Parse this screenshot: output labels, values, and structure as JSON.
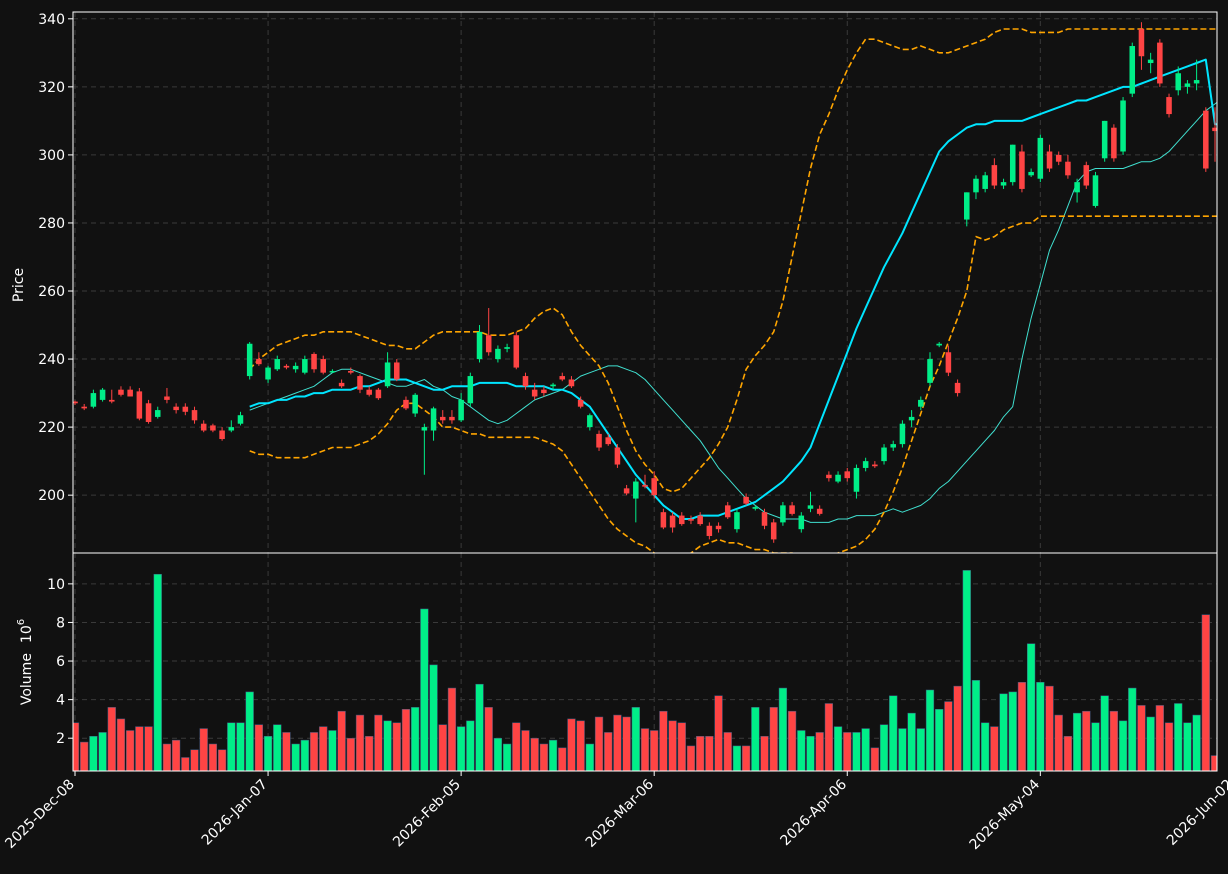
{
  "chart_data": {
    "type": "candlestick",
    "colors": {
      "background": "#111111",
      "up": "#00ee88",
      "down": "#ff4444",
      "ma_fast": "#40e0d0",
      "ma_slow": "#00e5ff",
      "bands": "#ffa500",
      "frame": "#ffffff"
    },
    "price_panel": {
      "ylabel": "Price",
      "ylim": [
        183,
        342
      ],
      "yticks": [
        200,
        220,
        240,
        260,
        280,
        300,
        320,
        340
      ]
    },
    "volume_panel": {
      "ylabel": "Volume",
      "exponent_label": "10",
      "exponent_power": "6",
      "ylim": [
        0.3,
        11.6
      ],
      "yticks": [
        2,
        4,
        6,
        8,
        10
      ]
    },
    "x_ticks": [
      {
        "index": 0,
        "label": "2025-Dec-08"
      },
      {
        "index": 21,
        "label": "2026-Jan-07"
      },
      {
        "index": 42,
        "label": "2026-Feb-05"
      },
      {
        "index": 63,
        "label": "2026-Mar-06"
      },
      {
        "index": 84,
        "label": "2026-Apr-06"
      },
      {
        "index": 105,
        "label": "2026-May-04"
      },
      {
        "index": 126,
        "label": "2026-Jun-02"
      }
    ],
    "candles": [
      [
        227.5,
        227.8,
        226.5,
        227.0,
        2.8
      ],
      [
        226.0,
        226.8,
        225.0,
        225.5,
        1.8
      ],
      [
        226.0,
        231.0,
        225.5,
        230.0,
        2.1
      ],
      [
        228.0,
        231.5,
        227.5,
        231.0,
        2.3
      ],
      [
        228.0,
        231.0,
        227.0,
        227.5,
        3.6
      ],
      [
        231.0,
        232.0,
        229.0,
        229.5,
        3.0
      ],
      [
        231.0,
        232.0,
        229.0,
        229.0,
        2.4
      ],
      [
        230.5,
        231.5,
        222.0,
        222.5,
        2.6
      ],
      [
        227.0,
        228.0,
        221.0,
        221.5,
        2.6
      ],
      [
        223.0,
        226.0,
        222.5,
        225.0,
        10.5
      ],
      [
        229.0,
        231.5,
        227.0,
        228.0,
        1.7
      ],
      [
        226.0,
        227.0,
        224.0,
        225.0,
        1.9
      ],
      [
        226.0,
        227.0,
        223.5,
        224.5,
        1.0
      ],
      [
        225.0,
        226.0,
        221.0,
        222.0,
        1.4
      ],
      [
        221.0,
        222.0,
        218.5,
        219.0,
        2.5
      ],
      [
        220.5,
        221.0,
        218.5,
        219.0,
        1.7
      ],
      [
        219.0,
        220.0,
        216.0,
        216.5,
        1.4
      ],
      [
        219.0,
        222.0,
        218.5,
        220.0,
        2.8
      ],
      [
        221.0,
        224.5,
        220.5,
        223.5,
        2.8
      ],
      [
        235.0,
        245.0,
        234.0,
        244.5,
        4.4
      ],
      [
        240.0,
        242.0,
        238.0,
        238.5,
        2.7
      ],
      [
        234.0,
        238.0,
        233.0,
        237.5,
        2.1
      ],
      [
        237.0,
        241.0,
        236.5,
        240.0,
        2.7
      ],
      [
        238.0,
        238.5,
        237.0,
        237.5,
        2.3
      ],
      [
        237.0,
        239.0,
        236.0,
        238.0,
        1.7
      ],
      [
        236.0,
        241.0,
        235.5,
        240.0,
        1.9
      ],
      [
        241.5,
        242.0,
        236.0,
        237.0,
        2.3
      ],
      [
        240.0,
        241.0,
        235.5,
        236.0,
        2.6
      ],
      [
        236.5,
        237.0,
        236.0,
        236.5,
        2.4
      ],
      [
        233.0,
        234.0,
        231.5,
        232.0,
        3.4
      ],
      [
        236.5,
        237.5,
        235.5,
        236.0,
        2.0
      ],
      [
        235.0,
        235.5,
        230.0,
        231.0,
        3.2
      ],
      [
        231.0,
        232.0,
        229.0,
        229.5,
        2.1
      ],
      [
        231.0,
        231.5,
        228.0,
        228.5,
        3.2
      ],
      [
        232.0,
        242.0,
        231.5,
        239.0,
        2.9
      ],
      [
        239.0,
        240.0,
        233.5,
        234.0,
        2.8
      ],
      [
        228.0,
        229.0,
        225.0,
        225.5,
        3.5
      ],
      [
        224.0,
        230.0,
        223.0,
        229.5,
        3.6
      ],
      [
        219.0,
        221.0,
        206.0,
        220.0,
        8.7
      ],
      [
        219.0,
        226.0,
        216.0,
        225.5,
        5.8
      ],
      [
        223.0,
        225.0,
        221.0,
        222.0,
        2.7
      ],
      [
        223.0,
        225.0,
        221.0,
        222.0,
        4.6
      ],
      [
        222.0,
        230.0,
        221.5,
        228.0,
        2.6
      ],
      [
        227.0,
        236.0,
        226.0,
        235.0,
        2.9
      ],
      [
        240.0,
        250.0,
        239.0,
        248.0,
        4.8
      ],
      [
        247.0,
        255.0,
        241.0,
        242.0,
        3.6
      ],
      [
        240.0,
        244.0,
        239.0,
        243.0,
        2.0
      ],
      [
        243.0,
        244.5,
        242.0,
        243.5,
        1.7
      ],
      [
        247.0,
        248.0,
        237.0,
        237.5,
        2.8
      ],
      [
        235.0,
        236.0,
        231.0,
        232.0,
        2.4
      ],
      [
        231.0,
        233.0,
        228.0,
        229.0,
        2.0
      ],
      [
        231.0,
        232.0,
        229.0,
        230.0,
        1.7
      ],
      [
        232.0,
        233.0,
        231.0,
        232.5,
        1.9
      ],
      [
        235.0,
        236.0,
        233.5,
        234.0,
        1.5
      ],
      [
        234.0,
        235.0,
        231.5,
        232.0,
        3.0
      ],
      [
        228.0,
        229.0,
        225.5,
        226.0,
        2.9
      ],
      [
        220.0,
        224.0,
        219.0,
        223.5,
        1.7
      ],
      [
        218.0,
        219.0,
        213.0,
        214.0,
        3.1
      ],
      [
        217.0,
        218.0,
        214.5,
        215.0,
        2.3
      ],
      [
        214.0,
        215.0,
        208.0,
        209.0,
        3.2
      ],
      [
        202.0,
        203.0,
        200.0,
        200.5,
        3.1
      ],
      [
        199.0,
        205.0,
        192.0,
        204.0,
        3.6
      ],
      [
        203.0,
        206.0,
        202.0,
        202.5,
        2.5
      ],
      [
        205.0,
        207.0,
        199.0,
        200.0,
        2.4
      ],
      [
        195.0,
        196.0,
        190.0,
        190.5,
        3.4
      ],
      [
        194.0,
        195.0,
        189.0,
        190.5,
        2.9
      ],
      [
        194.0,
        195.0,
        191.0,
        191.5,
        2.8
      ],
      [
        193.0,
        194.0,
        191.5,
        192.5,
        1.6
      ],
      [
        194.0,
        195.0,
        191.0,
        191.5,
        2.1
      ],
      [
        191.0,
        192.0,
        187.0,
        188.0,
        2.1
      ],
      [
        191.0,
        192.0,
        189.0,
        190.0,
        4.2
      ],
      [
        197.0,
        198.0,
        193.0,
        193.5,
        2.3
      ],
      [
        190.0,
        196.0,
        189.0,
        195.0,
        1.6
      ],
      [
        199.5,
        200.5,
        197.0,
        197.5,
        1.6
      ],
      [
        196.0,
        197.0,
        195.5,
        196.5,
        3.6
      ],
      [
        195.0,
        196.0,
        190.0,
        191.0,
        2.1
      ],
      [
        192.0,
        193.0,
        186.0,
        187.0,
        3.6
      ],
      [
        192.0,
        198.0,
        191.0,
        197.0,
        4.6
      ],
      [
        197.0,
        198.0,
        194.0,
        194.5,
        3.4
      ],
      [
        190.0,
        195.0,
        189.0,
        194.0,
        2.4
      ],
      [
        196.0,
        201.0,
        195.0,
        197.0,
        2.1
      ],
      [
        196.0,
        197.0,
        194.0,
        194.5,
        2.3
      ],
      [
        206.0,
        207.0,
        204.0,
        205.0,
        3.8
      ],
      [
        204.0,
        207.0,
        203.5,
        206.0,
        2.6
      ],
      [
        207.0,
        208.0,
        204.0,
        205.0,
        2.3
      ],
      [
        201.0,
        209.0,
        199.0,
        208.0,
        2.3
      ],
      [
        208.0,
        211.0,
        207.0,
        210.0,
        2.5
      ],
      [
        209.0,
        210.0,
        208.0,
        208.5,
        1.5
      ],
      [
        210.0,
        215.0,
        209.0,
        214.0,
        2.7
      ],
      [
        214.0,
        216.0,
        213.0,
        215.0,
        4.2
      ],
      [
        215.0,
        222.0,
        214.0,
        221.0,
        2.5
      ],
      [
        222.0,
        225.0,
        220.0,
        223.0,
        3.3
      ],
      [
        226.0,
        229.0,
        225.0,
        228.0,
        2.5
      ],
      [
        233.0,
        242.0,
        232.0,
        240.0,
        4.5
      ],
      [
        244.0,
        245.0,
        243.5,
        244.5,
        3.5
      ],
      [
        242.0,
        244.0,
        235.0,
        236.0,
        3.9
      ],
      [
        233.0,
        234.0,
        229.0,
        230.0,
        4.7
      ],
      [
        281.0,
        289.0,
        279.0,
        289.0,
        10.7
      ],
      [
        289.0,
        294.0,
        287.0,
        293.0,
        5.0
      ],
      [
        290.0,
        295.0,
        289.0,
        294.0,
        2.8
      ],
      [
        297.0,
        299.0,
        290.0,
        291.0,
        2.6
      ],
      [
        291.0,
        293.0,
        290.0,
        292.0,
        4.3
      ],
      [
        292.0,
        303.0,
        291.0,
        303.0,
        4.4
      ],
      [
        301.0,
        303.0,
        289.0,
        290.0,
        4.9
      ],
      [
        294.0,
        296.0,
        293.5,
        295.0,
        6.9
      ],
      [
        293.0,
        306.0,
        292.0,
        305.0,
        4.9
      ],
      [
        301.0,
        303.0,
        295.0,
        296.0,
        4.7
      ],
      [
        300.0,
        301.0,
        297.0,
        298.0,
        3.2
      ],
      [
        298.0,
        300.0,
        293.0,
        294.0,
        2.1
      ],
      [
        289.0,
        293.0,
        286.0,
        292.0,
        3.3
      ],
      [
        297.0,
        298.0,
        290.0,
        291.0,
        3.4
      ],
      [
        285.0,
        295.0,
        284.5,
        294.0,
        2.8
      ],
      [
        299.0,
        310.0,
        298.0,
        310.0,
        4.2
      ],
      [
        308.0,
        309.0,
        298.0,
        299.0,
        3.4
      ],
      [
        301.0,
        317.0,
        300.0,
        316.0,
        2.9
      ],
      [
        318.0,
        333.0,
        317.0,
        332.0,
        4.6
      ],
      [
        337.0,
        339.0,
        325.0,
        329.0,
        3.7
      ],
      [
        327.0,
        330.0,
        324.0,
        328.0,
        3.1
      ],
      [
        333.0,
        334.0,
        320.0,
        321.0,
        3.7
      ],
      [
        317.0,
        318.0,
        311.0,
        312.0,
        2.8
      ],
      [
        319.0,
        326.0,
        317.5,
        324.0,
        3.8
      ],
      [
        320.0,
        322.0,
        318.0,
        321.0,
        2.8
      ],
      [
        321.0,
        328.0,
        319.0,
        322.0,
        3.2
      ],
      [
        313.0,
        314.0,
        295.0,
        296.0,
        8.4
      ],
      [
        308.0,
        314.0,
        298.0,
        307.0,
        1.1
      ]
    ],
    "lines": [
      {
        "role": "ma_fast",
        "start": 19,
        "values": [
          225,
          226,
          227,
          228,
          229,
          230,
          231,
          232,
          234,
          236,
          237,
          237,
          236,
          235,
          234,
          233,
          232,
          232,
          233,
          234,
          232,
          231,
          229,
          228,
          226,
          224,
          222,
          221,
          222,
          224,
          226,
          228,
          229,
          230,
          231,
          233,
          235,
          236,
          237,
          238,
          238,
          237,
          236,
          234,
          231,
          228,
          225,
          222,
          219,
          216,
          212,
          208,
          205,
          202,
          199,
          197,
          195,
          194,
          193,
          193,
          193,
          192,
          192,
          192,
          193,
          193,
          194,
          194,
          194,
          195,
          196,
          195,
          196,
          197,
          199,
          202,
          204,
          207,
          210,
          213,
          216,
          219,
          223,
          226,
          240,
          252,
          262,
          272,
          278,
          285,
          292,
          295,
          296,
          296,
          296,
          296,
          297,
          298,
          298,
          299,
          301,
          304,
          307,
          310,
          313,
          315,
          317,
          320,
          321,
          320
        ]
      },
      {
        "role": "ma_slow",
        "start": 19,
        "values": [
          226,
          227,
          227,
          228,
          228,
          229,
          229,
          230,
          230,
          231,
          231,
          231,
          232,
          232,
          233,
          234,
          234,
          234,
          233,
          232,
          231,
          231,
          232,
          232,
          232,
          233,
          233,
          233,
          233,
          232,
          232,
          232,
          232,
          231,
          231,
          230,
          228,
          226,
          222,
          218,
          214,
          210,
          206,
          203,
          200,
          197,
          195,
          193,
          193,
          194,
          194,
          194,
          195,
          196,
          197,
          198,
          200,
          202,
          204,
          207,
          210,
          214,
          221,
          228,
          235,
          242,
          249,
          255,
          261,
          267,
          272,
          277,
          283,
          289,
          295,
          301,
          304,
          306,
          308,
          309,
          309,
          310,
          310,
          310,
          310,
          311,
          312,
          313,
          314,
          315,
          316,
          316,
          317,
          318,
          319,
          320,
          320,
          321,
          322,
          323,
          324,
          325,
          326,
          327,
          328,
          309,
          309,
          309,
          310,
          310
        ]
      },
      {
        "role": "band_upper",
        "start": 19,
        "dashed": true,
        "values": [
          237,
          240,
          242,
          244,
          245,
          246,
          247,
          247,
          248,
          248,
          248,
          248,
          247,
          246,
          245,
          244,
          244,
          243,
          243,
          245,
          247,
          248,
          248,
          248,
          248,
          248,
          247,
          247,
          247,
          248,
          249,
          252,
          254,
          255,
          253,
          248,
          244,
          241,
          238,
          233,
          226,
          219,
          213,
          209,
          206,
          202,
          201,
          202,
          205,
          208,
          211,
          215,
          220,
          228,
          237,
          241,
          244,
          248,
          257,
          270,
          283,
          296,
          306,
          312,
          319,
          325,
          330,
          334,
          334,
          333,
          332,
          331,
          331,
          332,
          331,
          330,
          330,
          331,
          332,
          333,
          334,
          336,
          337,
          337,
          337,
          336,
          336,
          336,
          336,
          337,
          337,
          337,
          337,
          337,
          337,
          337,
          337,
          337,
          337,
          337,
          337,
          337,
          337,
          337,
          337,
          337,
          337,
          337,
          337,
          337
        ]
      },
      {
        "role": "band_lower",
        "start": 19,
        "dashed": true,
        "values": [
          213,
          212,
          212,
          211,
          211,
          211,
          211,
          212,
          213,
          214,
          214,
          214,
          215,
          216,
          218,
          221,
          225,
          227,
          227,
          225,
          223,
          220,
          220,
          219,
          218,
          218,
          217,
          217,
          217,
          217,
          217,
          217,
          216,
          215,
          213,
          209,
          205,
          201,
          197,
          193,
          190,
          188,
          186,
          185,
          183,
          182,
          182,
          182,
          183,
          185,
          186,
          187,
          186,
          186,
          185,
          184,
          184,
          183,
          183,
          183,
          182,
          182,
          182,
          182,
          183,
          184,
          185,
          187,
          190,
          195,
          201,
          208,
          216,
          224,
          232,
          238,
          245,
          252,
          260,
          276,
          275,
          276,
          278,
          279,
          280,
          280,
          282,
          282,
          282,
          282,
          282,
          282,
          282,
          282,
          282,
          282,
          282,
          282,
          282,
          282,
          282,
          282,
          282,
          282,
          282,
          282,
          282,
          282,
          282,
          282
        ]
      }
    ]
  }
}
